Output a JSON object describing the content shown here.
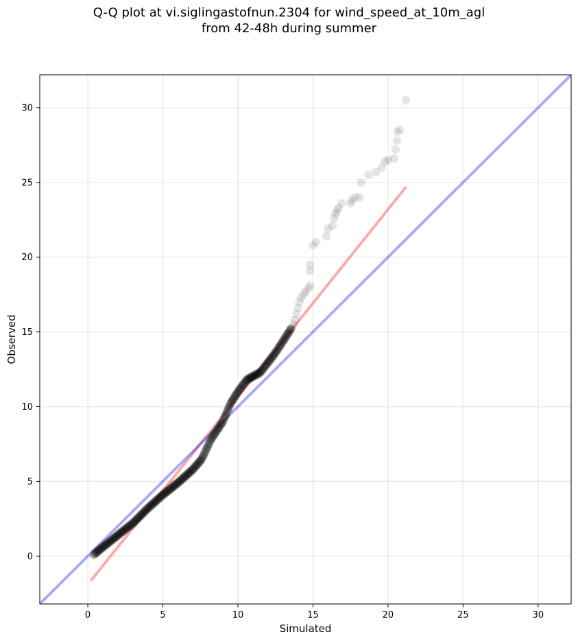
{
  "title_line1": "Q-Q plot at vi.siglingastofnun.2304 for wind_speed_at_10m_agl",
  "title_line2": "from 42-48h during summer",
  "chart_data": {
    "type": "scatter",
    "xlabel": "Simulated",
    "ylabel": "Observed",
    "xlim": [
      -3.2,
      32.2
    ],
    "ylim": [
      -3.2,
      32.2
    ],
    "xticks": [
      0,
      5,
      10,
      15,
      20,
      25,
      30
    ],
    "yticks": [
      0,
      5,
      10,
      15,
      20,
      25,
      30
    ],
    "grid": true,
    "colors": {
      "points": "#000000",
      "identity_line": "#0000dd",
      "fit_line": "#ee0000"
    },
    "identity_line": {
      "x": [
        -3.2,
        32.2
      ],
      "y": [
        -3.2,
        32.2
      ]
    },
    "fit_line": {
      "x": [
        0.2,
        21.2
      ],
      "y": [
        -1.65,
        24.7
      ]
    },
    "tail_points": [
      [
        13.7,
        15.5
      ],
      [
        13.8,
        15.8
      ],
      [
        13.9,
        16.2
      ],
      [
        14.0,
        16.6
      ],
      [
        14.1,
        17.0
      ],
      [
        14.2,
        17.3
      ],
      [
        14.4,
        17.5
      ],
      [
        14.5,
        17.7
      ],
      [
        14.7,
        17.9
      ],
      [
        14.8,
        18.1
      ],
      [
        14.8,
        19.1
      ],
      [
        14.8,
        19.5
      ],
      [
        15.0,
        20.8
      ],
      [
        15.2,
        21.0
      ],
      [
        15.9,
        21.4
      ],
      [
        16.0,
        21.9
      ],
      [
        16.3,
        22.1
      ],
      [
        16.4,
        22.6
      ],
      [
        16.5,
        22.9
      ],
      [
        16.6,
        23.1
      ],
      [
        16.7,
        23.3
      ],
      [
        16.9,
        23.6
      ],
      [
        17.5,
        23.6
      ],
      [
        17.6,
        23.8
      ],
      [
        17.8,
        24.0
      ],
      [
        18.1,
        24.0
      ],
      [
        18.2,
        25.0
      ],
      [
        18.7,
        25.5
      ],
      [
        19.2,
        25.7
      ],
      [
        19.6,
        26.0
      ],
      [
        19.8,
        26.4
      ],
      [
        20.0,
        26.5
      ],
      [
        20.4,
        26.6
      ],
      [
        20.5,
        27.2
      ],
      [
        20.6,
        27.8
      ],
      [
        20.6,
        28.4
      ],
      [
        20.8,
        28.5
      ],
      [
        21.2,
        30.5
      ]
    ]
  }
}
